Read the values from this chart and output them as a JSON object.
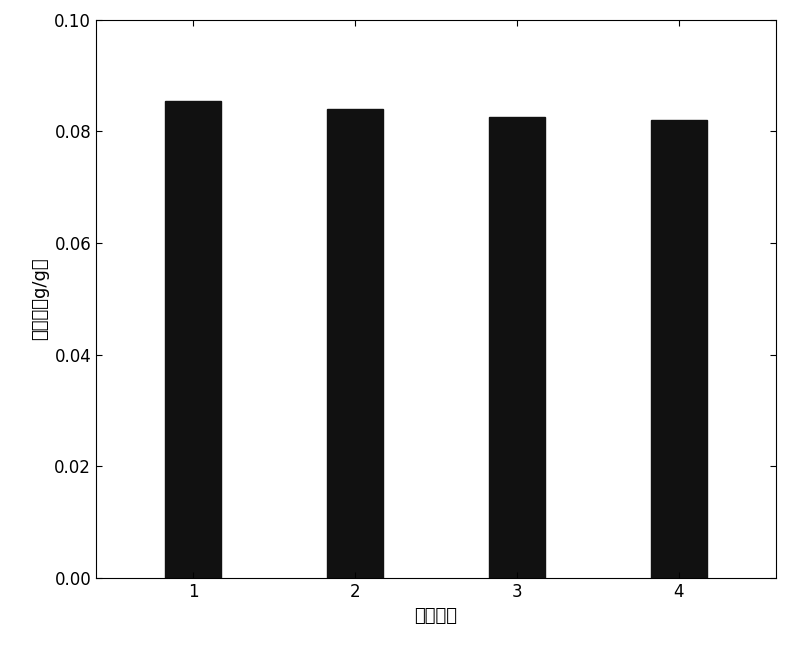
{
  "categories": [
    "1",
    "2",
    "3",
    "4"
  ],
  "values": [
    0.0855,
    0.084,
    0.0825,
    0.082
  ],
  "bar_color": "#111111",
  "xlabel": "实验次数",
  "ylabel": "吸附量（g/g）",
  "ylim": [
    0.0,
    0.1
  ],
  "yticks": [
    0.0,
    0.02,
    0.04,
    0.06,
    0.08,
    0.1
  ],
  "bar_width": 0.35,
  "background_color": "#ffffff",
  "xlabel_fontsize": 13,
  "ylabel_fontsize": 13,
  "tick_fontsize": 12
}
